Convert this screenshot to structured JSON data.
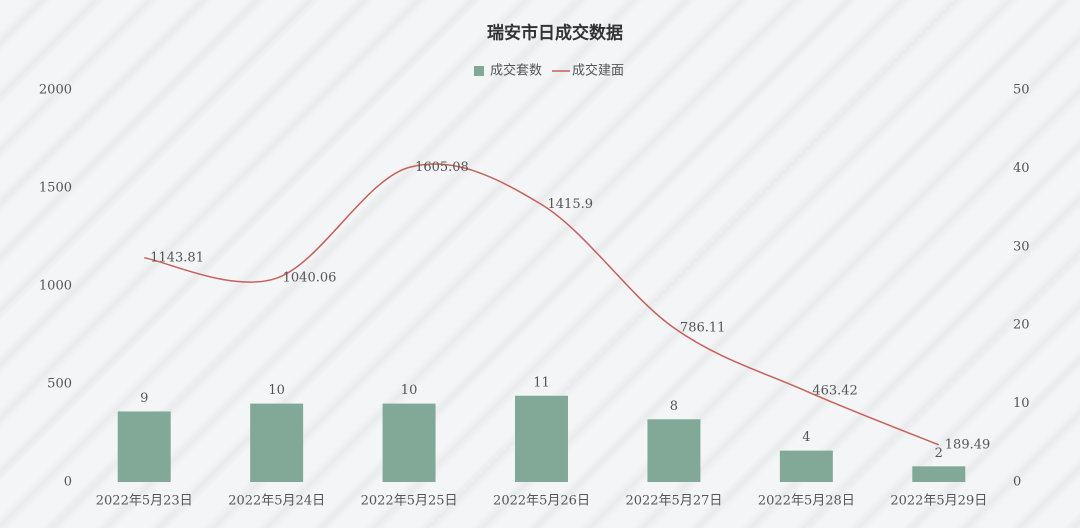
{
  "chart_data": {
    "type": "bar-line",
    "title": "瑞安市日成交数据",
    "categories": [
      "2022年5月23日",
      "2022年5月24日",
      "2022年5月25日",
      "2022年5月26日",
      "2022年5月27日",
      "2022年5月28日",
      "2022年5月29日"
    ],
    "series": [
      {
        "name": "成交套数",
        "type": "bar",
        "axis": "y2",
        "color": "#82a898",
        "values": [
          9,
          10,
          10,
          11,
          8,
          4,
          2
        ]
      },
      {
        "name": "成交建面",
        "type": "line",
        "color": "#c8605a",
        "smooth": true,
        "values": [
          1143.81,
          1040.06,
          1605.08,
          1415.9,
          786.11,
          463.42,
          189.49
        ]
      }
    ],
    "ylim": [
      0,
      2000
    ],
    "yticks": [
      0,
      500,
      1000,
      1500,
      2000
    ],
    "y2lim": [
      0,
      50
    ],
    "y2ticks": [
      0,
      10,
      20,
      30,
      40,
      50
    ],
    "legend": "top",
    "grid": false
  }
}
